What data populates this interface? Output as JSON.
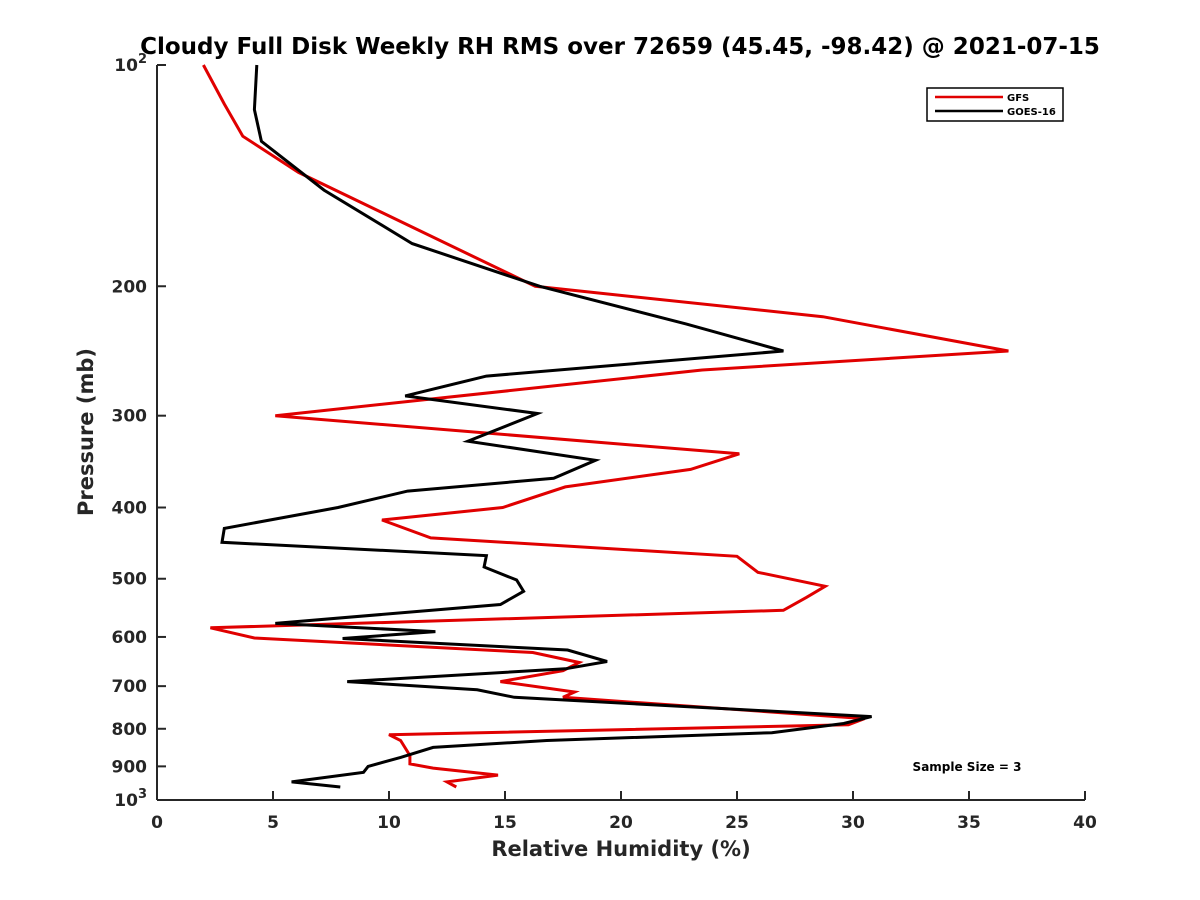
{
  "chart_data": {
    "type": "line",
    "title": "Cloudy Full Disk Weekly RH RMS over 72659 (45.45, -98.42) @ 2021-07-15",
    "xlabel": "Relative Humidity (%)",
    "ylabel": "Pressure (mb)",
    "xlim": [
      0,
      40
    ],
    "ylim": [
      100,
      1000
    ],
    "y_scale": "log",
    "y_reversed": true,
    "grid": false,
    "legend_position": "top-right",
    "x_ticks": [
      "0",
      "5",
      "10",
      "15",
      "20",
      "25",
      "30",
      "35",
      "40"
    ],
    "y_ticks": [
      {
        "value": 100,
        "base": "10",
        "exp": "2"
      },
      {
        "value": 200,
        "label": "200"
      },
      {
        "value": 300,
        "label": "300"
      },
      {
        "value": 400,
        "label": "400"
      },
      {
        "value": 500,
        "label": "500"
      },
      {
        "value": 600,
        "label": "600"
      },
      {
        "value": 700,
        "label": "700"
      },
      {
        "value": 800,
        "label": "800"
      },
      {
        "value": 900,
        "label": "900"
      },
      {
        "value": 1000,
        "base": "10",
        "exp": "3"
      }
    ],
    "annotation": "Sample Size = 3",
    "series": [
      {
        "name": "GFS",
        "color": "#e00000",
        "points": [
          [
            2.0,
            100
          ],
          [
            2.9,
            113
          ],
          [
            3.7,
            125
          ],
          [
            6.1,
            140
          ],
          [
            10.8,
            165
          ],
          [
            16.3,
            200
          ],
          [
            28.7,
            220
          ],
          [
            36.7,
            245
          ],
          [
            23.5,
            260
          ],
          [
            5.1,
            300
          ],
          [
            25.1,
            338
          ],
          [
            23.0,
            355
          ],
          [
            17.6,
            375
          ],
          [
            14.9,
            400
          ],
          [
            9.7,
            416
          ],
          [
            11.8,
            440
          ],
          [
            25.0,
            466
          ],
          [
            25.9,
            490
          ],
          [
            28.8,
            512
          ],
          [
            28.0,
            530
          ],
          [
            27.0,
            552
          ],
          [
            2.3,
            583
          ],
          [
            4.2,
            602
          ],
          [
            16.2,
            630
          ],
          [
            18.2,
            650
          ],
          [
            17.5,
            667
          ],
          [
            14.8,
            690
          ],
          [
            18.0,
            713
          ],
          [
            17.5,
            725
          ],
          [
            30.5,
            775
          ],
          [
            29.8,
            790
          ],
          [
            10.0,
            815
          ],
          [
            10.5,
            830
          ],
          [
            10.9,
            870
          ],
          [
            10.9,
            893
          ],
          [
            11.9,
            905
          ],
          [
            14.7,
            925
          ],
          [
            12.5,
            945
          ],
          [
            12.9,
            960
          ]
        ]
      },
      {
        "name": "GOES-16",
        "color": "#000000",
        "points": [
          [
            4.3,
            100
          ],
          [
            4.2,
            115
          ],
          [
            4.5,
            127
          ],
          [
            7.2,
            148
          ],
          [
            11.0,
            175
          ],
          [
            16.5,
            200
          ],
          [
            22.8,
            225
          ],
          [
            27.0,
            245
          ],
          [
            14.2,
            265
          ],
          [
            10.7,
            282
          ],
          [
            16.4,
            298
          ],
          [
            13.4,
            325
          ],
          [
            18.9,
            345
          ],
          [
            17.1,
            365
          ],
          [
            10.8,
            380
          ],
          [
            7.8,
            400
          ],
          [
            2.9,
            427
          ],
          [
            2.8,
            446
          ],
          [
            14.2,
            465
          ],
          [
            14.1,
            482
          ],
          [
            15.5,
            502
          ],
          [
            15.8,
            520
          ],
          [
            14.8,
            542
          ],
          [
            5.1,
            575
          ],
          [
            12.0,
            590
          ],
          [
            8.0,
            603
          ],
          [
            17.7,
            625
          ],
          [
            19.4,
            648
          ],
          [
            17.6,
            663
          ],
          [
            8.2,
            690
          ],
          [
            13.8,
            708
          ],
          [
            15.4,
            725
          ],
          [
            30.8,
            770
          ],
          [
            29.6,
            787
          ],
          [
            26.5,
            810
          ],
          [
            16.8,
            830
          ],
          [
            11.9,
            848
          ],
          [
            10.5,
            875
          ],
          [
            9.1,
            900
          ],
          [
            8.9,
            917
          ],
          [
            5.8,
            945
          ],
          [
            7.9,
            960
          ]
        ]
      }
    ]
  }
}
